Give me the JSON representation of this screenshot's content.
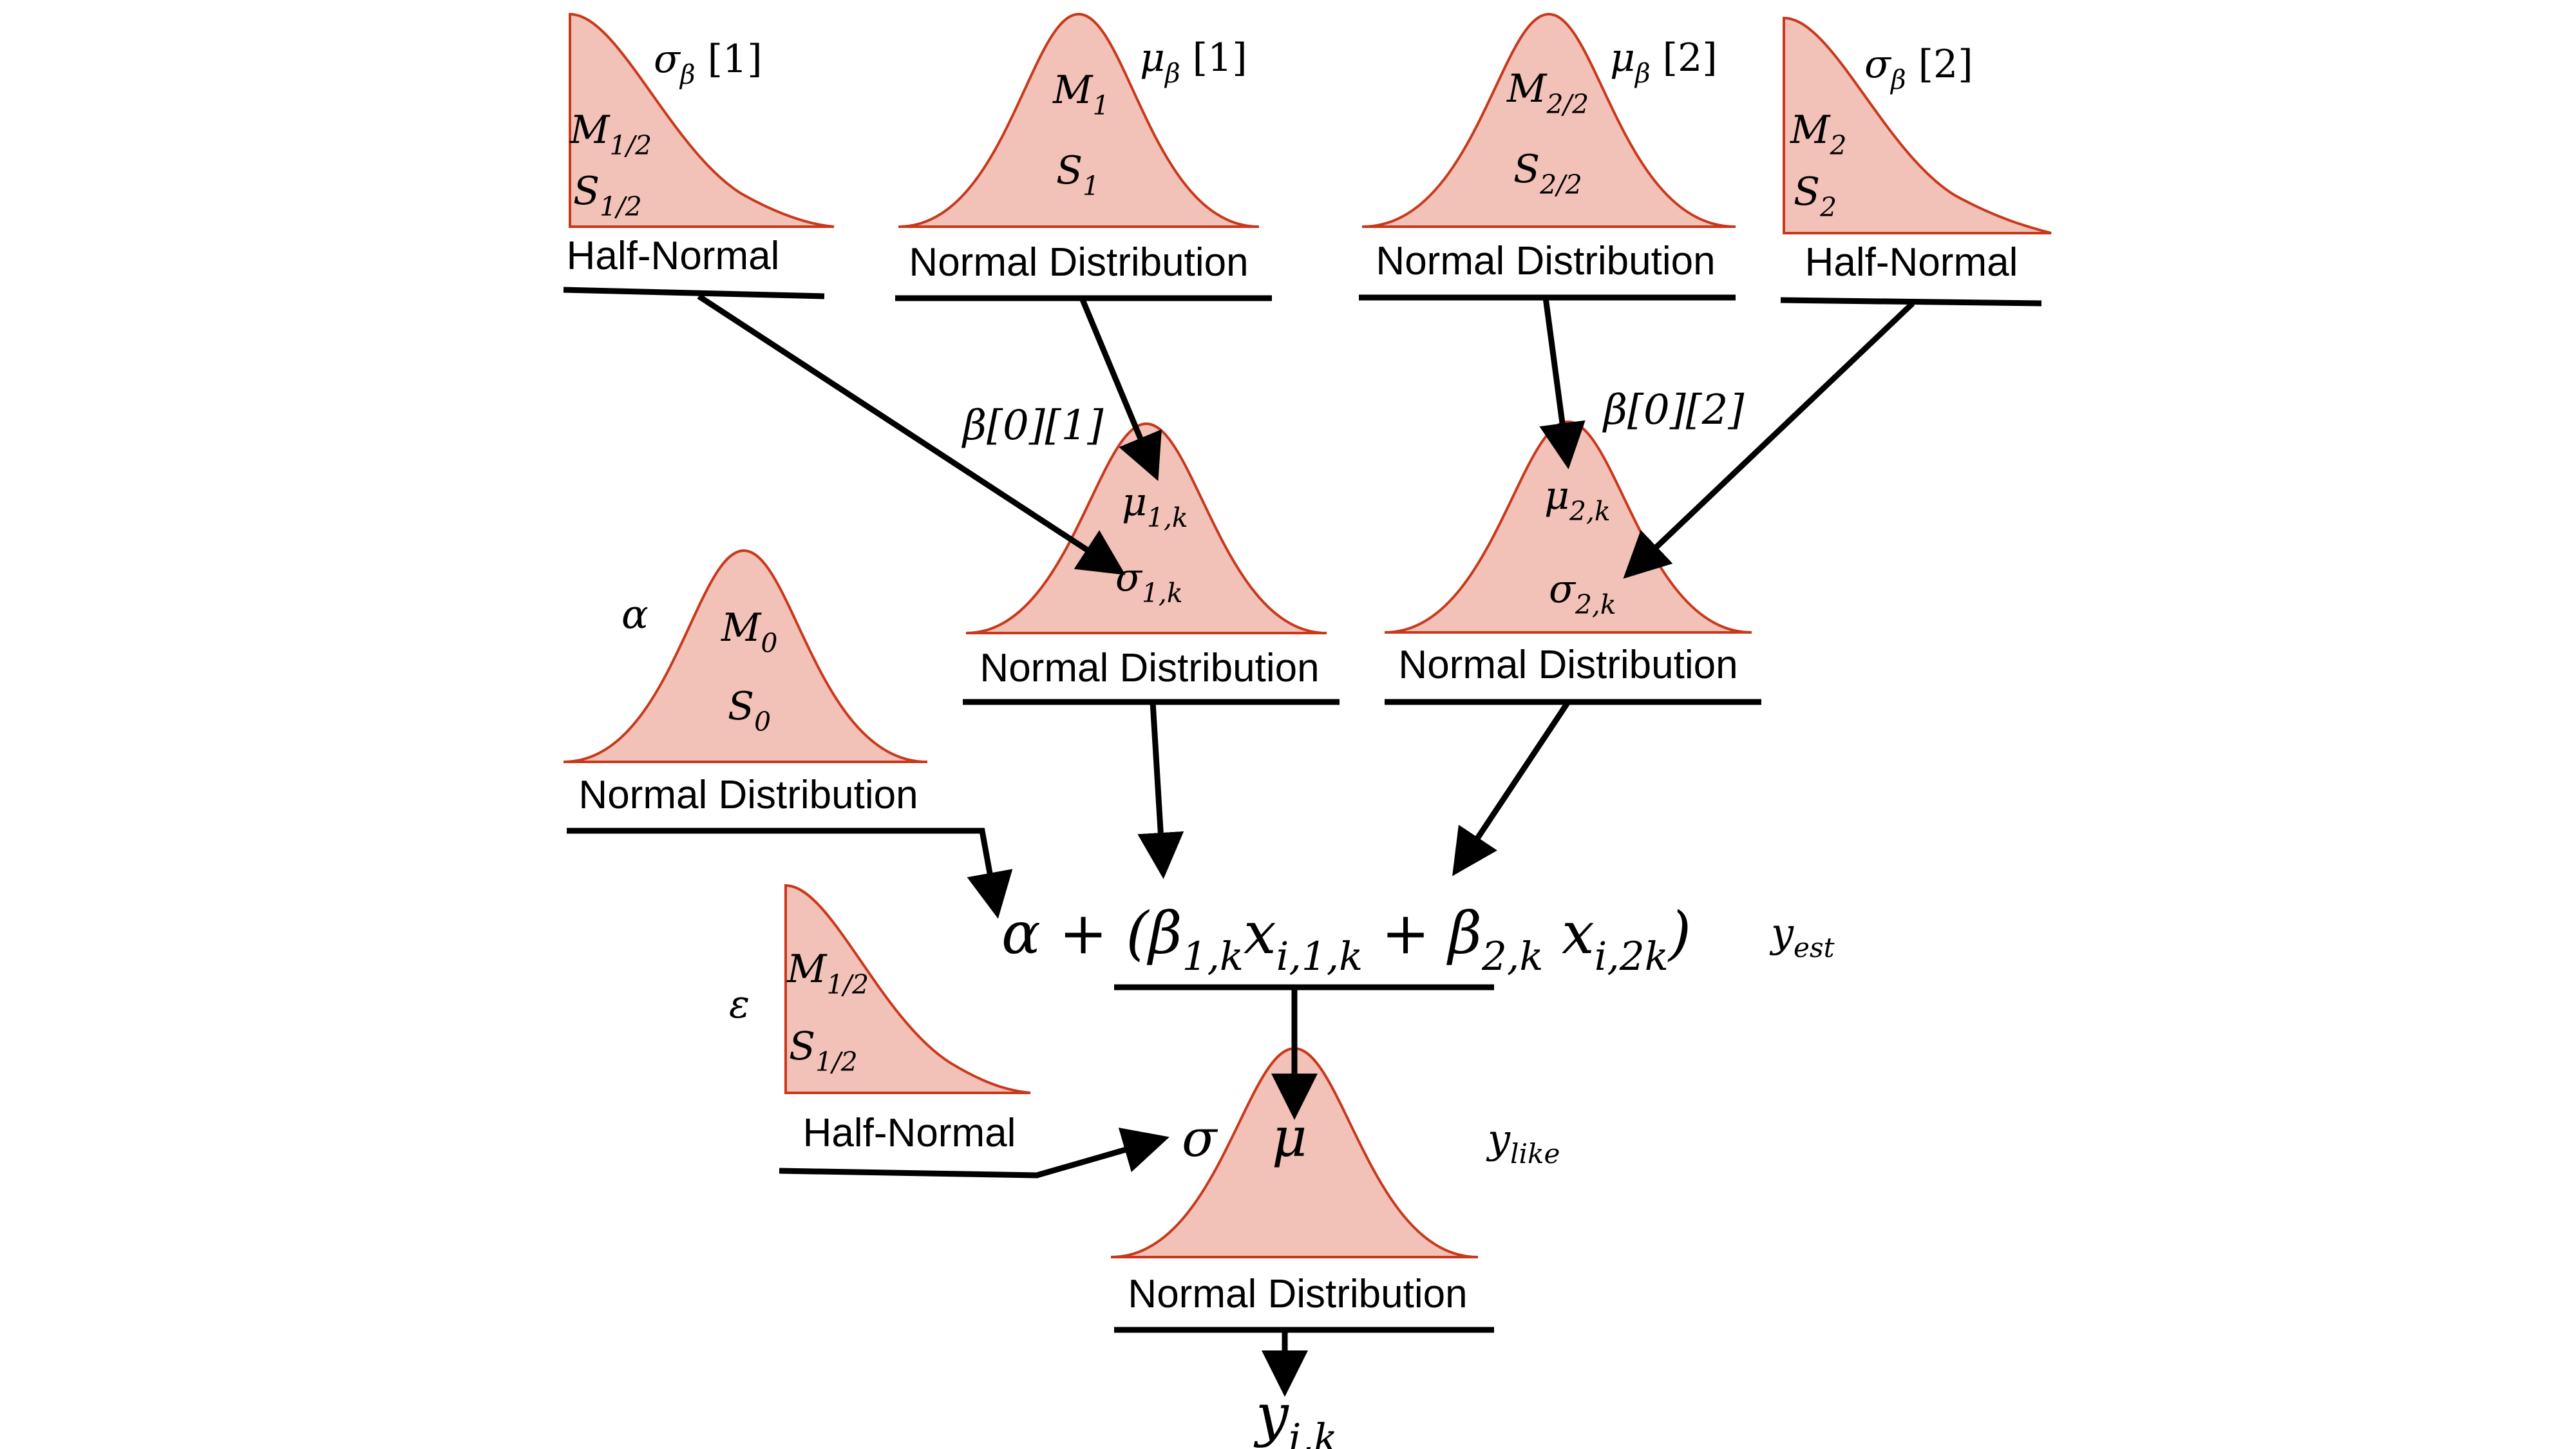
{
  "nodes": {
    "half_normal_1": {
      "label": "Half-Normal",
      "param": {
        "sym": "σ",
        "sub": "β",
        "index": " [1]"
      },
      "mean": {
        "sym": "M",
        "sub": "1/2"
      },
      "sd": {
        "sym": "S",
        "sub": "1/2"
      }
    },
    "normal_mu1": {
      "label": "Normal Distribution",
      "param": {
        "sym": "μ",
        "sub": "β",
        "index": " [1]"
      },
      "mean": {
        "sym": "M",
        "sub": "1"
      },
      "sd": {
        "sym": "S",
        "sub": "1"
      }
    },
    "normal_mu2": {
      "label": "Normal Distribution",
      "param": {
        "sym": "μ",
        "sub": "β",
        "index": " [2]"
      },
      "mean": {
        "sym": "M",
        "sub": "2/2"
      },
      "sd": {
        "sym": "S",
        "sub": "2/2"
      }
    },
    "half_normal_2": {
      "label": "Half-Normal",
      "param": {
        "sym": "σ",
        "sub": "β",
        "index": " [2]"
      },
      "mean": {
        "sym": "M",
        "sub": "2"
      },
      "sd": {
        "sym": "S",
        "sub": "2"
      }
    },
    "beta_1": {
      "label": "Normal Distribution",
      "param": "β[0][1]",
      "mean": {
        "sym": "μ",
        "sub": "1,k"
      },
      "sd": {
        "sym": "σ",
        "sub": "1,k"
      }
    },
    "beta_2": {
      "label": "Normal Distribution",
      "param": "β[0][2]",
      "mean": {
        "sym": "μ",
        "sub": "2,k"
      },
      "sd": {
        "sym": "σ",
        "sub": "2,k"
      }
    },
    "alpha": {
      "label": "Normal Distribution",
      "param": "α",
      "mean": {
        "sym": "M",
        "sub": "0"
      },
      "sd": {
        "sym": "S",
        "sub": "0"
      }
    },
    "epsilon": {
      "label": "Half-Normal",
      "param": "ε",
      "mean": {
        "sym": "M",
        "sub": "1/2"
      },
      "sd": {
        "sym": "S",
        "sub": "1/2"
      }
    },
    "likelihood": {
      "label": "Normal Distribution",
      "mu": "μ",
      "sigma": "σ",
      "name": {
        "sym": "y",
        "sub": "like"
      }
    }
  },
  "equation": {
    "lead": "α + (β",
    "b1_sub": "1,k",
    "x1": "x",
    "x1_sub": "i,1,k",
    "mid": " + β",
    "b2_sub": "2,k",
    "x2": " x",
    "x2_sub": "i,2k",
    "tail": ")",
    "name": {
      "sym": "y",
      "sub": "est"
    }
  },
  "output": {
    "sym": "y",
    "sub": "i,k"
  },
  "colors": {
    "fill": "#f2c1b7",
    "stroke": "#c8391c",
    "line": "#000000"
  }
}
